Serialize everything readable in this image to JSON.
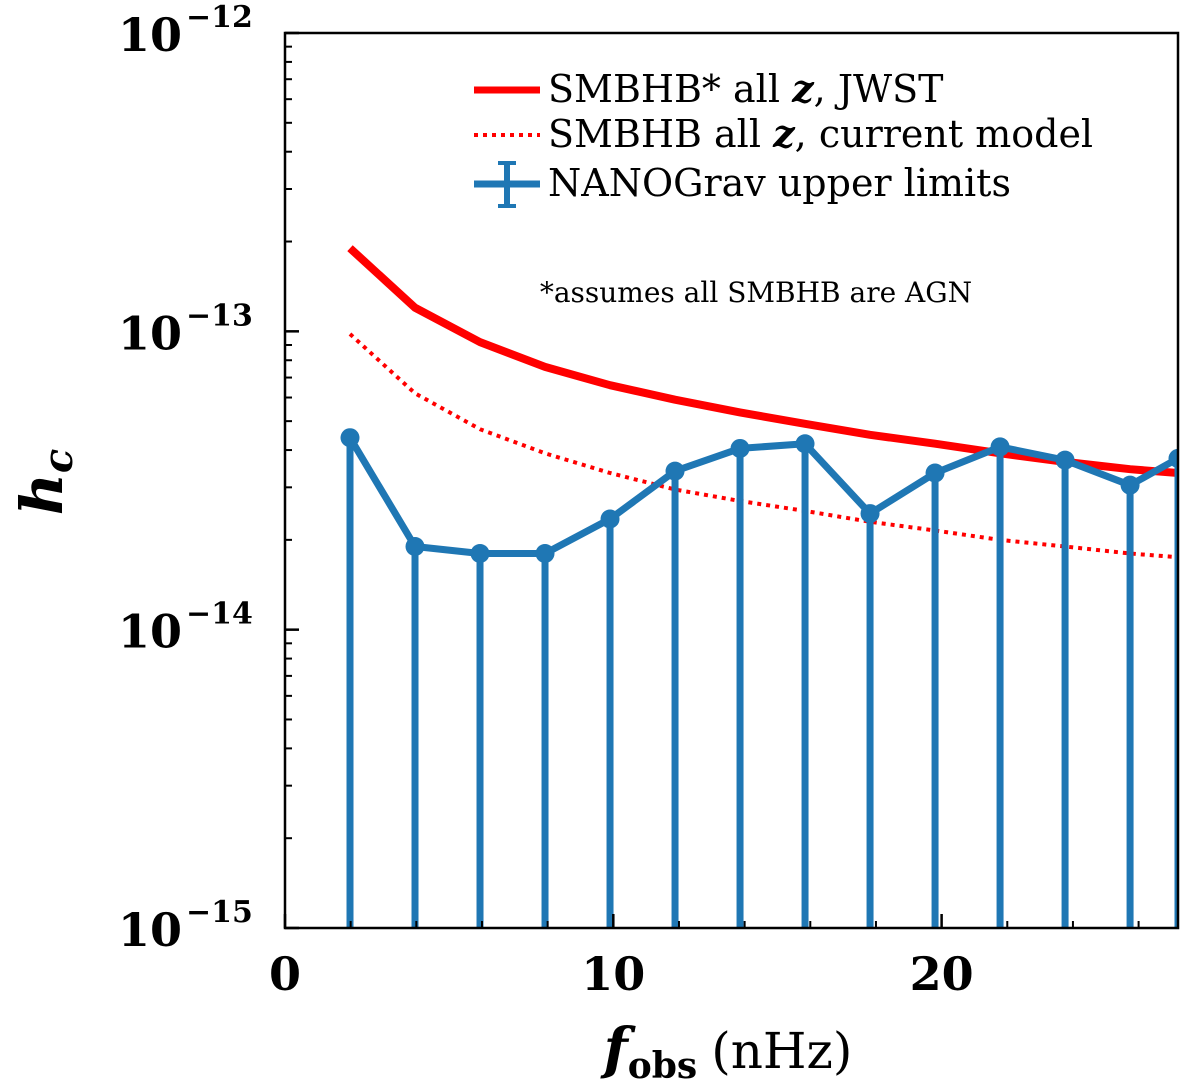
{
  "chart_data": {
    "type": "line",
    "title": "",
    "xlabel": {
      "symbol": "f",
      "subscript": "obs",
      "unit": "(nHz)"
    },
    "ylabel": {
      "symbol": "h",
      "subscript": "c"
    },
    "xlim": [
      0,
      27.2
    ],
    "ylim": [
      1e-15,
      1e-12
    ],
    "yscale": "log",
    "x_ticks": [
      0,
      10,
      20
    ],
    "x_tick_labels": [
      "0",
      "10",
      "20"
    ],
    "y_ticks": [
      {
        "value": 1e-15,
        "base": "10",
        "exp": "−15"
      },
      {
        "value": 1e-14,
        "base": "10",
        "exp": "−14"
      },
      {
        "value": 1e-13,
        "base": "10",
        "exp": "−13"
      },
      {
        "value": 1e-12,
        "base": "10",
        "exp": "−12"
      }
    ],
    "legend_position": "top-right",
    "series": [
      {
        "name": "SMBHB* all z, JWST",
        "label_parts": [
          "SMBHB* all ",
          "z",
          ", JWST"
        ],
        "style": "solid",
        "color": "#ff0000",
        "x": [
          1.98,
          3.96,
          5.94,
          7.92,
          9.9,
          11.88,
          13.86,
          15.84,
          17.82,
          19.8,
          21.78,
          23.76,
          25.74,
          27.2
        ],
        "y": [
          1.9e-13,
          1.2e-13,
          9.2e-14,
          7.6e-14,
          6.6e-14,
          5.9e-14,
          5.35e-14,
          4.9e-14,
          4.5e-14,
          4.2e-14,
          3.9e-14,
          3.65e-14,
          3.45e-14,
          3.35e-14
        ]
      },
      {
        "name": "SMBHB all z, current model",
        "label_parts": [
          "SMBHB all ",
          "z",
          ", current model"
        ],
        "style": "dotted",
        "color": "#ff0000",
        "x": [
          1.98,
          3.96,
          5.94,
          7.92,
          9.9,
          11.88,
          13.86,
          15.84,
          17.82,
          19.8,
          21.78,
          23.76,
          25.74,
          27.2
        ],
        "y": [
          9.8e-14,
          6.2e-14,
          4.7e-14,
          3.9e-14,
          3.35e-14,
          2.95e-14,
          2.7e-14,
          2.5e-14,
          2.3e-14,
          2.15e-14,
          2e-14,
          1.9e-14,
          1.8e-14,
          1.75e-14
        ]
      },
      {
        "name": "NANOGrav upper limits",
        "label_parts": [
          "NANOGrav upper limits"
        ],
        "style": "errorbar-upper-limits",
        "color": "#1f77b4",
        "x": [
          1.98,
          3.96,
          5.94,
          7.92,
          9.9,
          11.88,
          13.86,
          15.84,
          17.82,
          19.8,
          21.78,
          23.76,
          25.74,
          27.2
        ],
        "y": [
          4.4e-14,
          1.9e-14,
          1.8e-14,
          1.8e-14,
          2.35e-14,
          3.4e-14,
          4.05e-14,
          4.2e-14,
          2.45e-14,
          3.35e-14,
          4.1e-14,
          3.7e-14,
          3.05e-14,
          3.75e-14
        ]
      }
    ],
    "annotations": [
      {
        "text": "*assumes all SMBHB are AGN",
        "position": "upper-middle"
      }
    ]
  }
}
